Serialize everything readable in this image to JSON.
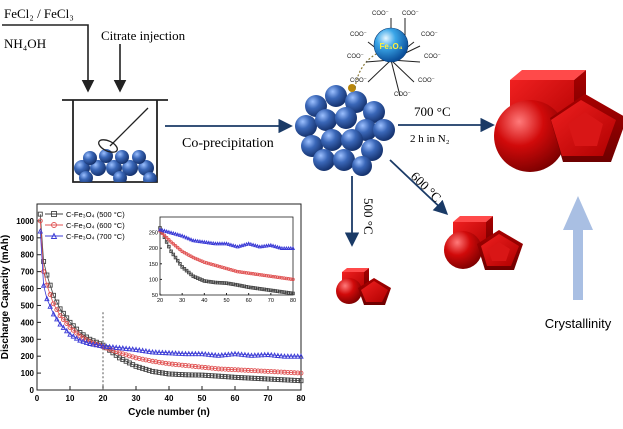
{
  "synthesis": {
    "reagents_line1": "FeCl₂ / FeCl₃",
    "reagents_line2": "NH₄OH",
    "citrate_label": "Citrate injection",
    "coprecip_label": "Co-precipitation",
    "nanoparticle_label": "Fe₃O₄",
    "carboxylate_label": "COO⁻",
    "route_700_temp": "700 °C",
    "route_700_condition": "2 h in N₂",
    "route_600_temp": "600 °C",
    "route_500_temp": "500 °C",
    "crystallinity_label": "Crystallinity"
  },
  "colors": {
    "sphere_blue": "#2f5aa6",
    "red_crystal": "#d40b0b",
    "crystallinity_arrow": "#a9bfe3",
    "series_500": "#444444",
    "series_600": "#e05252",
    "series_700": "#3b3bd6"
  },
  "chart_data": {
    "type": "line",
    "xlabel": "Cycle number (n)",
    "ylabel": "Discharge Capacity (mAh)",
    "xlim": [
      0,
      80
    ],
    "ylim": [
      0,
      1100
    ],
    "xticks": [
      0,
      10,
      20,
      30,
      40,
      50,
      60,
      70,
      80
    ],
    "yticks": [
      0,
      100,
      200,
      300,
      400,
      500,
      600,
      700,
      800,
      900,
      1000
    ],
    "legend_position": "top-left",
    "legend": [
      "C-Fe₃O₄ (500 °C)",
      "C-Fe₃O₄ (600 °C)",
      "C-Fe₃O₄ (700 °C)"
    ],
    "vertical_marker_x": 20,
    "series": [
      {
        "name": "C-Fe₃O₄ (500 °C)",
        "marker": "square",
        "color": "#444444",
        "x": [
          1,
          2,
          3,
          5,
          7,
          10,
          13,
          16,
          20,
          25,
          30,
          35,
          40,
          45,
          50,
          55,
          60,
          65,
          70,
          75,
          80
        ],
        "y": [
          1040,
          760,
          680,
          560,
          480,
          400,
          340,
          300,
          265,
          190,
          140,
          110,
          95,
          90,
          88,
          82,
          75,
          70,
          65,
          60,
          55
        ]
      },
      {
        "name": "C-Fe₃O₄ (600 °C)",
        "marker": "circle",
        "color": "#e05252",
        "x": [
          1,
          2,
          3,
          5,
          7,
          10,
          13,
          16,
          20,
          25,
          30,
          35,
          40,
          45,
          50,
          55,
          60,
          65,
          70,
          75,
          80
        ],
        "y": [
          1000,
          700,
          620,
          510,
          440,
          370,
          320,
          285,
          255,
          220,
          190,
          170,
          155,
          145,
          135,
          125,
          120,
          115,
          110,
          105,
          100
        ]
      },
      {
        "name": "C-Fe₃O₄ (700 °C)",
        "marker": "triangle",
        "color": "#3b3bd6",
        "x": [
          1,
          2,
          3,
          5,
          7,
          10,
          13,
          16,
          20,
          25,
          30,
          35,
          40,
          45,
          50,
          55,
          60,
          65,
          70,
          75,
          80
        ],
        "y": [
          940,
          620,
          540,
          450,
          390,
          330,
          295,
          275,
          260,
          250,
          240,
          225,
          220,
          215,
          215,
          205,
          215,
          205,
          210,
          200,
          200
        ]
      }
    ],
    "inset": {
      "xlim": [
        20,
        80
      ],
      "ylim": [
        50,
        300
      ],
      "xticks": [
        20,
        30,
        40,
        50,
        60,
        70,
        80
      ],
      "yticks": [
        50,
        100,
        150,
        200,
        250
      ]
    }
  }
}
